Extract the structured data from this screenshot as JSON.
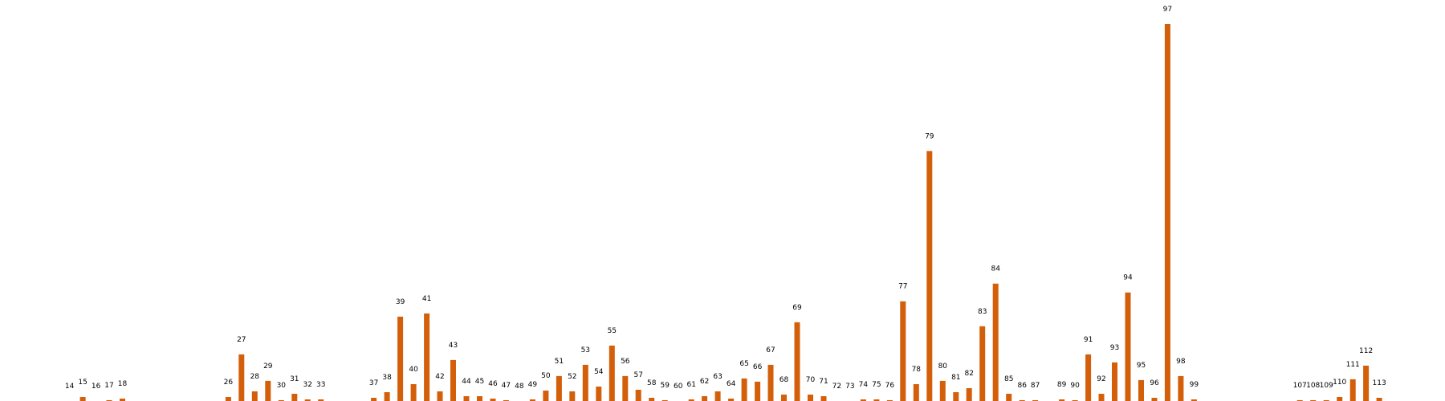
{
  "chart_data": {
    "type": "bar",
    "bar_color": "#d35f0a",
    "grid": false,
    "axes_visible": false,
    "x": [
      14,
      15,
      16,
      17,
      18,
      26,
      27,
      28,
      29,
      30,
      31,
      32,
      33,
      37,
      38,
      39,
      40,
      41,
      42,
      43,
      44,
      45,
      46,
      47,
      48,
      49,
      50,
      51,
      52,
      53,
      54,
      55,
      56,
      57,
      58,
      59,
      60,
      61,
      62,
      63,
      64,
      65,
      66,
      67,
      68,
      69,
      70,
      71,
      72,
      73,
      74,
      75,
      76,
      77,
      78,
      79,
      80,
      81,
      82,
      83,
      84,
      85,
      86,
      87,
      89,
      90,
      91,
      92,
      93,
      94,
      95,
      96,
      97,
      98,
      99,
      107,
      108,
      109,
      110,
      111,
      112,
      113
    ],
    "values": [
      0,
      5,
      0,
      1,
      3,
      5,
      58,
      12,
      25,
      1,
      9,
      2,
      2,
      4,
      11,
      105,
      21,
      109,
      12,
      51,
      6,
      6,
      3,
      1,
      0,
      2,
      13,
      31,
      12,
      45,
      18,
      69,
      31,
      14,
      4,
      1,
      0,
      2,
      6,
      12,
      3,
      28,
      24,
      45,
      8,
      98,
      8,
      6,
      0,
      0,
      2,
      2,
      1,
      124,
      21,
      311,
      25,
      11,
      16,
      93,
      146,
      9,
      1,
      1,
      2,
      1,
      58,
      9,
      48,
      135,
      26,
      4,
      469,
      31,
      2,
      1,
      1,
      1,
      5,
      27,
      44,
      4
    ],
    "ylim": [
      0,
      475
    ]
  }
}
